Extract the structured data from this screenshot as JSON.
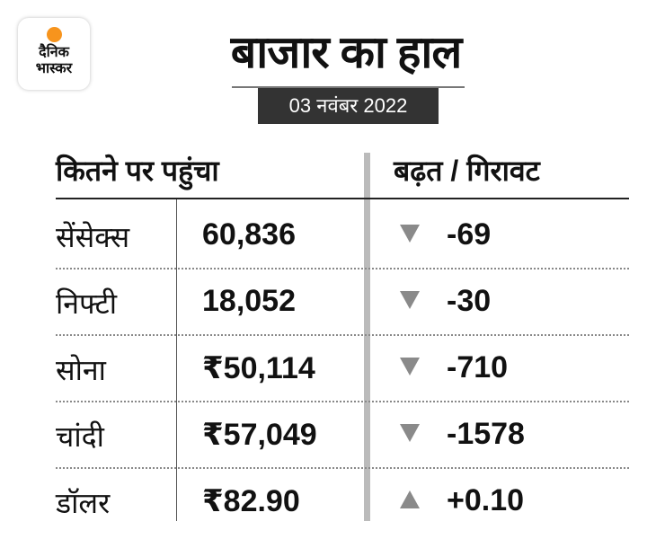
{
  "logo": {
    "line1": "दैनिक",
    "line2": "भास्कर",
    "sun_color": "#f7941d"
  },
  "title": "बाजार का हाल",
  "date": "03 नवंबर 2022",
  "headers": {
    "level": "कितने पर पहुंचा",
    "change": "बढ़त / गिरावट"
  },
  "rows": [
    {
      "name": "सेंसेक्स",
      "value": "60,836",
      "direction": "down",
      "change": "-69"
    },
    {
      "name": "निफ्टी",
      "value": "18,052",
      "direction": "down",
      "change": "-30"
    },
    {
      "name": "सोना",
      "value": "₹50,114",
      "direction": "down",
      "change": "-710"
    },
    {
      "name": "चांदी",
      "value": "₹57,049",
      "direction": "down",
      "change": "-1578"
    },
    {
      "name": "डॉलर",
      "value": "₹82.90",
      "direction": "up",
      "change": "+0.10"
    }
  ]
}
